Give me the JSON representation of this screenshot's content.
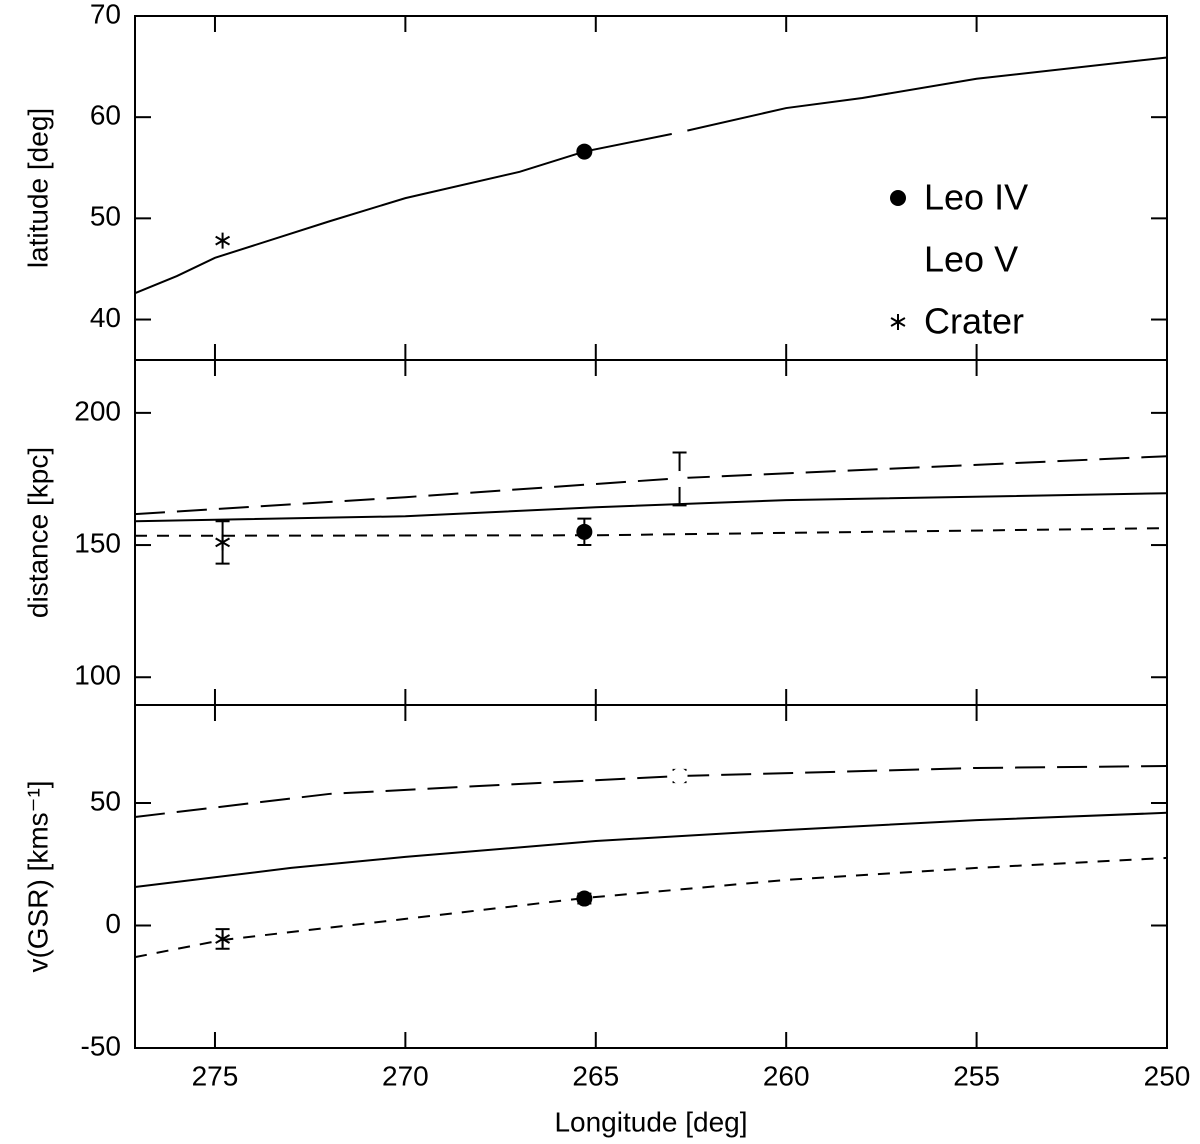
{
  "chart_data": [
    {
      "type": "line",
      "y_label": "latitude [deg]",
      "xlim": [
        277.1,
        250
      ],
      "xticks": [
        275,
        270,
        265,
        260,
        255,
        250
      ],
      "ylim": [
        36,
        70
      ],
      "yticks": [
        40,
        50,
        60,
        70
      ],
      "series": [
        {
          "style": "solid",
          "x": [
            277.1,
            276,
            275,
            272,
            270,
            267,
            265.3,
            262.8,
            260,
            258,
            255,
            250
          ],
          "values": [
            42.6,
            44.3,
            46.1,
            49.7,
            52.0,
            54.6,
            56.6,
            58.5,
            60.9,
            61.9,
            63.8,
            65.9
          ]
        }
      ],
      "points": [
        {
          "name": "Leo IV",
          "marker": "filled-circle",
          "x": 265.3,
          "y": 56.6
        },
        {
          "name": "Leo V",
          "marker": "open-circle",
          "x": 262.8,
          "y": 58.5
        },
        {
          "name": "Crater",
          "marker": "asterisk",
          "x": 274.8,
          "y": 47.8
        }
      ],
      "legend": "right"
    },
    {
      "type": "line",
      "y_label": "distance [kpc]",
      "xlim": [
        277.1,
        250
      ],
      "xticks": [
        275,
        270,
        265,
        260,
        255,
        250
      ],
      "ylim": [
        89.5,
        220
      ],
      "yticks": [
        100,
        150,
        200
      ],
      "series": [
        {
          "style": "long-dash",
          "x": [
            277.1,
            270,
            262.8,
            250
          ],
          "values": [
            161.7,
            168.1,
            175.3,
            183.6
          ]
        },
        {
          "style": "solid",
          "x": [
            277.1,
            270,
            265,
            260,
            250
          ],
          "values": [
            159,
            160.9,
            164.3,
            167,
            169.6
          ]
        },
        {
          "style": "short-dash",
          "x": [
            277.1,
            265,
            250
          ],
          "values": [
            153.5,
            153.7,
            156.4
          ]
        }
      ],
      "points": [
        {
          "marker": "filled-circle",
          "x": 265.3,
          "y": 155,
          "error": 5
        },
        {
          "marker": "open-circle",
          "x": 262.8,
          "y": 175,
          "error": 10
        },
        {
          "marker": "asterisk",
          "x": 274.8,
          "y": 151,
          "error": 8
        }
      ]
    },
    {
      "type": "line",
      "y_label": "v(GSR) [kms⁻¹]",
      "x_label": "Longitude [deg]",
      "xlim": [
        277.1,
        250
      ],
      "xticks": [
        275,
        270,
        265,
        260,
        255,
        250
      ],
      "ylim": [
        -50,
        90
      ],
      "yticks": [
        -50,
        0,
        50
      ],
      "series": [
        {
          "style": "long-dash",
          "x": [
            277.1,
            272,
            268,
            262.8,
            255,
            250
          ],
          "values": [
            44.3,
            53.7,
            57,
            61,
            64.3,
            65.1
          ]
        },
        {
          "style": "solid",
          "x": [
            277.1,
            273,
            270,
            265,
            260,
            255,
            250
          ],
          "values": [
            15.7,
            23.5,
            28,
            34.5,
            39,
            43,
            46
          ]
        },
        {
          "style": "short-dash",
          "x": [
            277.1,
            274.8,
            270,
            265.3,
            260,
            255,
            250
          ],
          "values": [
            -12.9,
            -5.9,
            2.7,
            11.2,
            18.6,
            23.5,
            27.6
          ]
        }
      ],
      "points": [
        {
          "marker": "filled-circle",
          "x": 265.3,
          "y": 11,
          "error": 2
        },
        {
          "marker": "open-circle",
          "x": 262.8,
          "y": 61,
          "error": 2.5
        },
        {
          "marker": "asterisk",
          "x": 274.8,
          "y": -5.5,
          "error": 4
        }
      ]
    }
  ]
}
